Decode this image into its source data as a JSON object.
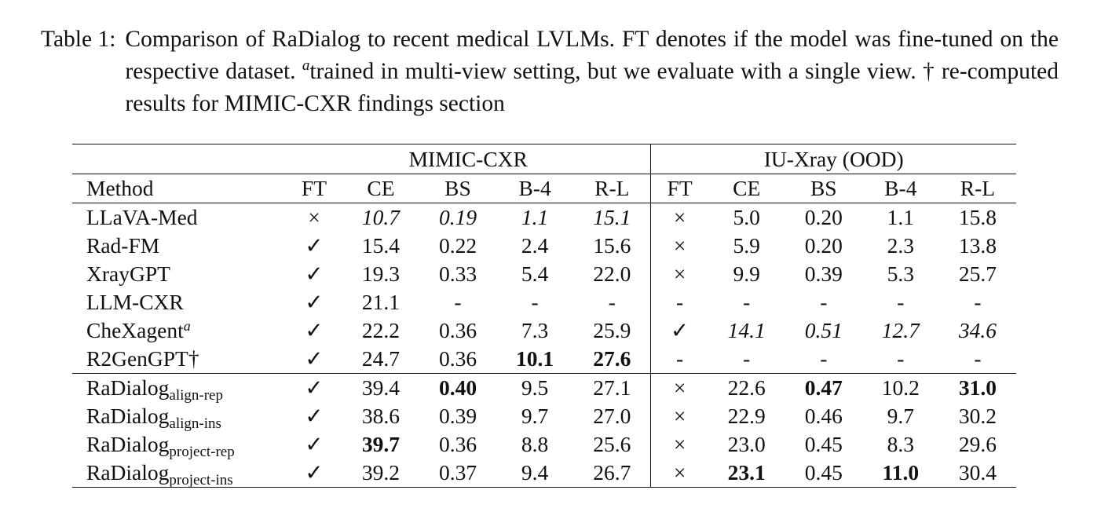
{
  "caption": {
    "label": "Table 1:",
    "text_before": "Comparison of RaDialog to recent medical LVLMs.  FT denotes if the model was fine-tuned on the respective dataset. ",
    "superscript": "a",
    "text_after": "trained in multi-view setting, but we evaluate with a single view. † re-computed results for MIMIC-CXR findings section"
  },
  "table": {
    "groups": [
      "MIMIC-CXR",
      "IU-Xray (OOD)"
    ],
    "columns": [
      "Method",
      "FT",
      "CE",
      "BS",
      "B-4",
      "R-L",
      "FT",
      "CE",
      "BS",
      "B-4",
      "R-L"
    ],
    "baseline_rows": [
      {
        "method": "LLaVA-Med",
        "sup": "",
        "cells": [
          {
            "v": "×",
            "s": ""
          },
          {
            "v": "10.7",
            "s": "it"
          },
          {
            "v": "0.19",
            "s": "it"
          },
          {
            "v": "1.1",
            "s": "it"
          },
          {
            "v": "15.1",
            "s": "it"
          },
          {
            "v": "×",
            "s": ""
          },
          {
            "v": "5.0",
            "s": ""
          },
          {
            "v": "0.20",
            "s": ""
          },
          {
            "v": "1.1",
            "s": ""
          },
          {
            "v": "15.8",
            "s": ""
          }
        ]
      },
      {
        "method": "Rad-FM",
        "sup": "",
        "cells": [
          {
            "v": "✓",
            "s": ""
          },
          {
            "v": "15.4",
            "s": ""
          },
          {
            "v": "0.22",
            "s": ""
          },
          {
            "v": "2.4",
            "s": ""
          },
          {
            "v": "15.6",
            "s": ""
          },
          {
            "v": "×",
            "s": ""
          },
          {
            "v": "5.9",
            "s": ""
          },
          {
            "v": "0.20",
            "s": ""
          },
          {
            "v": "2.3",
            "s": ""
          },
          {
            "v": "13.8",
            "s": ""
          }
        ]
      },
      {
        "method": "XrayGPT",
        "sup": "",
        "cells": [
          {
            "v": "✓",
            "s": ""
          },
          {
            "v": "19.3",
            "s": ""
          },
          {
            "v": "0.33",
            "s": ""
          },
          {
            "v": "5.4",
            "s": ""
          },
          {
            "v": "22.0",
            "s": ""
          },
          {
            "v": "×",
            "s": ""
          },
          {
            "v": "9.9",
            "s": ""
          },
          {
            "v": "0.39",
            "s": ""
          },
          {
            "v": "5.3",
            "s": ""
          },
          {
            "v": "25.7",
            "s": ""
          }
        ]
      },
      {
        "method": "LLM-CXR",
        "sup": "",
        "cells": [
          {
            "v": "✓",
            "s": ""
          },
          {
            "v": "21.1",
            "s": ""
          },
          {
            "v": "-",
            "s": ""
          },
          {
            "v": "-",
            "s": ""
          },
          {
            "v": "-",
            "s": ""
          },
          {
            "v": "-",
            "s": ""
          },
          {
            "v": "-",
            "s": ""
          },
          {
            "v": "-",
            "s": ""
          },
          {
            "v": "-",
            "s": ""
          },
          {
            "v": "-",
            "s": ""
          }
        ]
      },
      {
        "method": "CheXagent",
        "sup": "a",
        "cells": [
          {
            "v": "✓",
            "s": ""
          },
          {
            "v": "22.2",
            "s": ""
          },
          {
            "v": "0.36",
            "s": ""
          },
          {
            "v": "7.3",
            "s": ""
          },
          {
            "v": "25.9",
            "s": ""
          },
          {
            "v": "✓",
            "s": ""
          },
          {
            "v": "14.1",
            "s": "it"
          },
          {
            "v": "0.51",
            "s": "it"
          },
          {
            "v": "12.7",
            "s": "it"
          },
          {
            "v": "34.6",
            "s": "it"
          }
        ]
      },
      {
        "method": "R2GenGPT†",
        "sup": "",
        "cells": [
          {
            "v": "✓",
            "s": ""
          },
          {
            "v": "24.7",
            "s": ""
          },
          {
            "v": "0.36",
            "s": ""
          },
          {
            "v": "10.1",
            "s": "bd"
          },
          {
            "v": "27.6",
            "s": "bd"
          },
          {
            "v": "-",
            "s": ""
          },
          {
            "v": "-",
            "s": ""
          },
          {
            "v": "-",
            "s": ""
          },
          {
            "v": "-",
            "s": ""
          },
          {
            "v": "-",
            "s": ""
          }
        ]
      }
    ],
    "radialog_rows": [
      {
        "method": "RaDialog",
        "sub": "align-rep",
        "cells": [
          {
            "v": "✓",
            "s": ""
          },
          {
            "v": "39.4",
            "s": ""
          },
          {
            "v": "0.40",
            "s": "bd"
          },
          {
            "v": "9.5",
            "s": ""
          },
          {
            "v": "27.1",
            "s": ""
          },
          {
            "v": "×",
            "s": ""
          },
          {
            "v": "22.6",
            "s": ""
          },
          {
            "v": "0.47",
            "s": "bd"
          },
          {
            "v": "10.2",
            "s": ""
          },
          {
            "v": "31.0",
            "s": "bd"
          }
        ]
      },
      {
        "method": "RaDialog",
        "sub": "align-ins",
        "cells": [
          {
            "v": "✓",
            "s": ""
          },
          {
            "v": "38.6",
            "s": ""
          },
          {
            "v": "0.39",
            "s": ""
          },
          {
            "v": "9.7",
            "s": ""
          },
          {
            "v": "27.0",
            "s": ""
          },
          {
            "v": "×",
            "s": ""
          },
          {
            "v": "22.9",
            "s": ""
          },
          {
            "v": "0.46",
            "s": ""
          },
          {
            "v": "9.7",
            "s": ""
          },
          {
            "v": "30.2",
            "s": ""
          }
        ]
      },
      {
        "method": "RaDialog",
        "sub": "project-rep",
        "cells": [
          {
            "v": "✓",
            "s": ""
          },
          {
            "v": "39.7",
            "s": "bd"
          },
          {
            "v": "0.36",
            "s": ""
          },
          {
            "v": "8.8",
            "s": ""
          },
          {
            "v": "25.6",
            "s": ""
          },
          {
            "v": "×",
            "s": ""
          },
          {
            "v": "23.0",
            "s": ""
          },
          {
            "v": "0.45",
            "s": ""
          },
          {
            "v": "8.3",
            "s": ""
          },
          {
            "v": "29.6",
            "s": ""
          }
        ]
      },
      {
        "method": "RaDialog",
        "sub": "project-ins",
        "cells": [
          {
            "v": "✓",
            "s": ""
          },
          {
            "v": "39.2",
            "s": ""
          },
          {
            "v": "0.37",
            "s": ""
          },
          {
            "v": "9.4",
            "s": ""
          },
          {
            "v": "26.7",
            "s": ""
          },
          {
            "v": "×",
            "s": ""
          },
          {
            "v": "23.1",
            "s": "bd"
          },
          {
            "v": "0.45",
            "s": ""
          },
          {
            "v": "11.0",
            "s": "bd"
          },
          {
            "v": "30.4",
            "s": ""
          }
        ]
      }
    ]
  }
}
